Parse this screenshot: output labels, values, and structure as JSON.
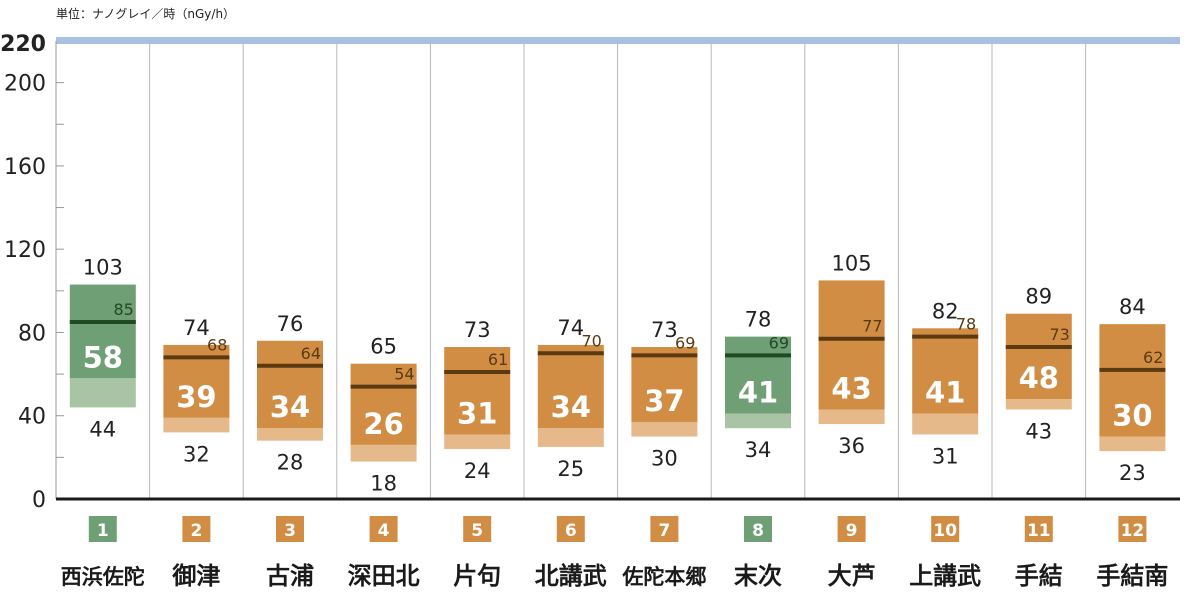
{
  "unit_label": "単位：ナノグレイ／時（nGy/h）",
  "colors": {
    "orange": "#d28d45",
    "orange_light": "#e6b98a",
    "green": "#6f9f75",
    "green_light": "#a9c4a5",
    "orange_line": "#5b3a12",
    "green_line": "#1f4a24",
    "top_band": "#a9c0e0"
  },
  "chart_data": {
    "type": "bar",
    "title": "",
    "xlabel": "",
    "ylabel": "",
    "ylim": [
      0,
      220
    ],
    "yticks": [
      0,
      40,
      80,
      120,
      160,
      200,
      220
    ],
    "grid": "vertical separators",
    "categories": [
      {
        "num": "1",
        "name": "西浜佐陀",
        "max": 103,
        "min": 44,
        "avg": 58,
        "current": 85,
        "color": "green"
      },
      {
        "num": "2",
        "name": "御津",
        "max": 74,
        "min": 32,
        "avg": 39,
        "current": 68,
        "color": "orange"
      },
      {
        "num": "3",
        "name": "古浦",
        "max": 76,
        "min": 28,
        "avg": 34,
        "current": 64,
        "color": "orange"
      },
      {
        "num": "4",
        "name": "深田北",
        "max": 65,
        "min": 18,
        "avg": 26,
        "current": 54,
        "color": "orange"
      },
      {
        "num": "5",
        "name": "片句",
        "max": 73,
        "min": 24,
        "avg": 31,
        "current": 61,
        "color": "orange"
      },
      {
        "num": "6",
        "name": "北講武",
        "max": 74,
        "min": 25,
        "avg": 34,
        "current": 70,
        "color": "orange"
      },
      {
        "num": "7",
        "name": "佐陀本郷",
        "max": 73,
        "min": 30,
        "avg": 37,
        "current": 69,
        "color": "orange"
      },
      {
        "num": "8",
        "name": "末次",
        "max": 78,
        "min": 34,
        "avg": 41,
        "current": 69,
        "color": "green"
      },
      {
        "num": "9",
        "name": "大芦",
        "max": 105,
        "min": 36,
        "avg": 43,
        "current": 77,
        "color": "orange"
      },
      {
        "num": "10",
        "name": "上講武",
        "max": 82,
        "min": 31,
        "avg": 41,
        "current": 78,
        "color": "orange"
      },
      {
        "num": "11",
        "name": "手結",
        "max": 89,
        "min": 43,
        "avg": 48,
        "current": 73,
        "color": "orange"
      },
      {
        "num": "12",
        "name": "手結南",
        "max": 84,
        "min": 23,
        "avg": 30,
        "current": 62,
        "color": "orange"
      }
    ]
  }
}
